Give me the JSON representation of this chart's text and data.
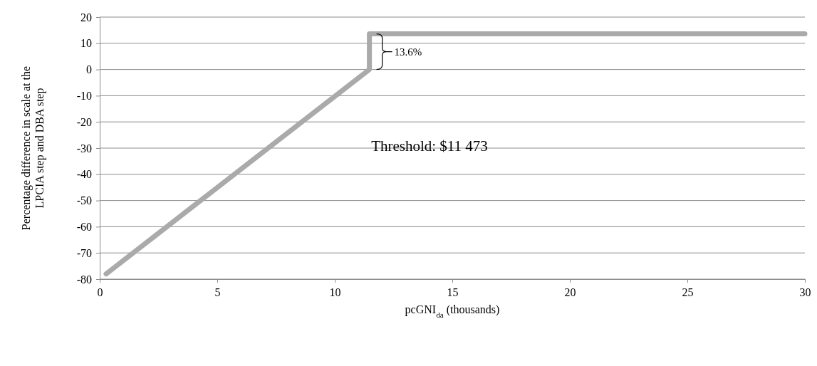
{
  "chart_data": {
    "type": "line",
    "xlabel": "pcGNI$_{da}$ (thousands)",
    "ylabel": "Percentage difference in scale at the LPCIA step and DBA step",
    "series": [
      {
        "color": "#aaaaaa",
        "x": [
          0.27,
          11.473,
          11.473,
          30
        ],
        "values": [
          -78,
          0,
          13.6,
          13.6
        ]
      }
    ],
    "xlim": [
      0,
      30
    ],
    "xticks": [
      0,
      5,
      10,
      15,
      20,
      25,
      30
    ],
    "ylim": [
      -80,
      20
    ],
    "yticks": [
      -80,
      -70,
      -60,
      -50,
      -40,
      -30,
      -20,
      -10,
      0,
      10,
      20
    ],
    "grid": "y",
    "marker": "none",
    "line_style": "solid",
    "annotations": [
      {
        "text": "13.6%",
        "x": 11.473,
        "y": 6.8
      },
      "Threshold: $11 473"
    ]
  }
}
